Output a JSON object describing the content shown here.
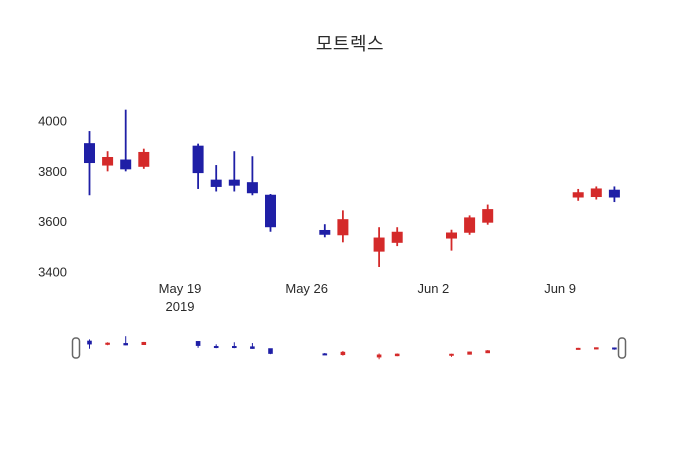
{
  "title": "모트렉스",
  "chart_data": {
    "type": "candlestick",
    "title": "모트렉스",
    "up_color": "#d42a2a",
    "down_color": "#1f1fa6",
    "y_ticks": [
      4000,
      3800,
      3600,
      3400
    ],
    "ylim": [
      3350,
      4100
    ],
    "x_ticks": [
      {
        "date": "2019-05-19",
        "label": "May 19",
        "sublabel": "2019"
      },
      {
        "date": "2019-05-26",
        "label": "May 26",
        "sublabel": ""
      },
      {
        "date": "2019-06-02",
        "label": "Jun 2",
        "sublabel": ""
      },
      {
        "date": "2019-06-09",
        "label": "Jun 9",
        "sublabel": ""
      }
    ],
    "candles": [
      {
        "date": "2019-05-14",
        "open": 3910,
        "high": 3960,
        "low": 3705,
        "close": 3835
      },
      {
        "date": "2019-05-15",
        "open": 3825,
        "high": 3880,
        "low": 3800,
        "close": 3855
      },
      {
        "date": "2019-05-16",
        "open": 3845,
        "high": 4045,
        "low": 3800,
        "close": 3810
      },
      {
        "date": "2019-05-17",
        "open": 3820,
        "high": 3890,
        "low": 3810,
        "close": 3875
      },
      {
        "date": "2019-05-20",
        "open": 3900,
        "high": 3910,
        "low": 3730,
        "close": 3795
      },
      {
        "date": "2019-05-21",
        "open": 3765,
        "high": 3825,
        "low": 3720,
        "close": 3740
      },
      {
        "date": "2019-05-22",
        "open": 3765,
        "high": 3880,
        "low": 3720,
        "close": 3745
      },
      {
        "date": "2019-05-23",
        "open": 3755,
        "high": 3860,
        "low": 3705,
        "close": 3715
      },
      {
        "date": "2019-05-24",
        "open": 3705,
        "high": 3710,
        "low": 3560,
        "close": 3580
      },
      {
        "date": "2019-05-27",
        "open": 3565,
        "high": 3590,
        "low": 3538,
        "close": 3550
      },
      {
        "date": "2019-05-28",
        "open": 3548,
        "high": 3645,
        "low": 3518,
        "close": 3608
      },
      {
        "date": "2019-05-30",
        "open": 3483,
        "high": 3578,
        "low": 3420,
        "close": 3535
      },
      {
        "date": "2019-05-31",
        "open": 3518,
        "high": 3578,
        "low": 3503,
        "close": 3558
      },
      {
        "date": "2019-06-03",
        "open": 3535,
        "high": 3568,
        "low": 3485,
        "close": 3555
      },
      {
        "date": "2019-06-04",
        "open": 3558,
        "high": 3625,
        "low": 3548,
        "close": 3615
      },
      {
        "date": "2019-06-05",
        "open": 3598,
        "high": 3668,
        "low": 3588,
        "close": 3648
      },
      {
        "date": "2019-06-10",
        "open": 3698,
        "high": 3730,
        "low": 3683,
        "close": 3715
      },
      {
        "date": "2019-06-11",
        "open": 3700,
        "high": 3740,
        "low": 3688,
        "close": 3730
      },
      {
        "date": "2019-06-12",
        "open": 3725,
        "high": 3740,
        "low": 3678,
        "close": 3698
      }
    ]
  },
  "range_slider": {
    "visible": true
  }
}
